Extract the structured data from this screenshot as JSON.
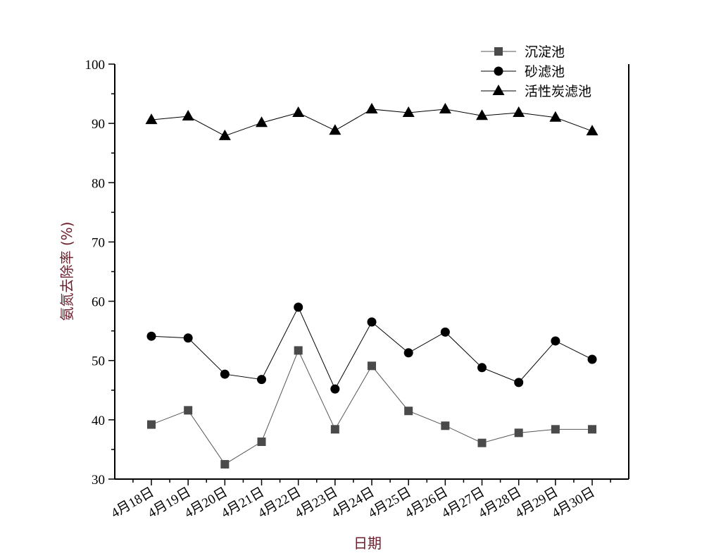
{
  "chart_data": {
    "type": "line",
    "title": "",
    "xlabel": "日期",
    "ylabel": "氨氮去除率 (%)",
    "ylim": [
      30,
      100
    ],
    "yticks": [
      30,
      40,
      50,
      60,
      70,
      80,
      90,
      100
    ],
    "grid": false,
    "legend_position": "top-right",
    "categories": [
      "4月18日",
      "4月19日",
      "4月20日",
      "4月21日",
      "4月22日",
      "4月23日",
      "4月24日",
      "4月25日",
      "4月26日",
      "4月27日",
      "4月28日",
      "4月29日",
      "4月30日"
    ],
    "series": [
      {
        "name": "沉淀池",
        "marker": "square",
        "color": "#4a4a4a",
        "values": [
          39.2,
          41.6,
          32.5,
          36.3,
          51.7,
          38.4,
          49.1,
          41.5,
          39.0,
          36.1,
          37.8,
          38.4,
          38.4
        ]
      },
      {
        "name": "砂滤池",
        "marker": "circle",
        "color": "#000000",
        "values": [
          54.1,
          53.8,
          47.7,
          46.8,
          59.0,
          45.2,
          56.5,
          51.3,
          54.8,
          48.8,
          46.3,
          53.3,
          50.2
        ]
      },
      {
        "name": "活性炭滤池",
        "marker": "triangle",
        "color": "#000000",
        "values": [
          90.6,
          91.2,
          87.9,
          90.1,
          91.8,
          88.8,
          92.4,
          91.8,
          92.4,
          91.3,
          91.8,
          91.0,
          88.7
        ]
      }
    ]
  }
}
